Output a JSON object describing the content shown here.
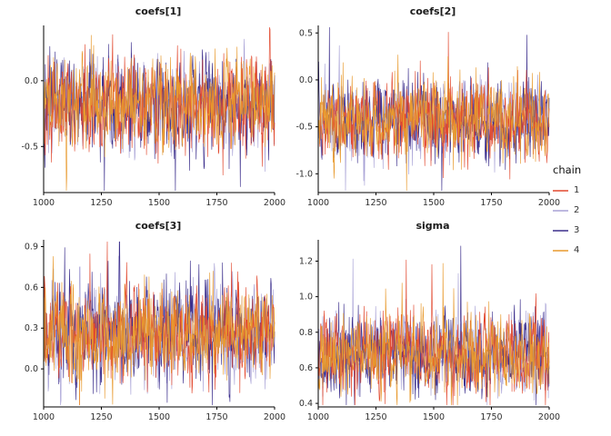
{
  "figure": {
    "background": "#ffffff"
  },
  "legend": {
    "title": "chain",
    "entries": [
      {
        "label": "1",
        "color": "#E2492F"
      },
      {
        "label": "2",
        "color": "#A8A2D6"
      },
      {
        "label": "3",
        "color": "#3B2E8C"
      },
      {
        "label": "4",
        "color": "#E89A2E"
      }
    ]
  },
  "chart_data": [
    {
      "type": "line",
      "title": "coefs[1]",
      "xlabel": "",
      "ylabel": "",
      "x": {
        "range": [
          1000,
          2000
        ],
        "tick_values": [
          1000,
          1250,
          1500,
          1750,
          2000
        ],
        "ticks": [
          "1000",
          "1250",
          "1500",
          "1750",
          "2000"
        ]
      },
      "y": {
        "lim": [
          -0.85,
          0.42
        ],
        "tick_values": [
          0.0,
          -0.5
        ],
        "ticks": [
          "0.0",
          "-0.5"
        ]
      },
      "series_summary": {
        "chains": [
          "1",
          "2",
          "3",
          "4"
        ],
        "iterations": [
          1000,
          2000
        ],
        "mean": -0.18,
        "sd": 0.17
      }
    },
    {
      "type": "line",
      "title": "coefs[2]",
      "xlabel": "",
      "ylabel": "",
      "x": {
        "range": [
          1000,
          2000
        ],
        "tick_values": [
          1000,
          1250,
          1500,
          1750,
          2000
        ],
        "ticks": [
          "1000",
          "1250",
          "1500",
          "1750",
          "2000"
        ]
      },
      "y": {
        "lim": [
          -1.2,
          0.58
        ],
        "tick_values": [
          0.5,
          0.0,
          -0.5,
          -1.0
        ],
        "ticks": [
          "0.5",
          "0.0",
          "-0.5",
          "-1.0"
        ]
      },
      "series_summary": {
        "chains": [
          "1",
          "2",
          "3",
          "4"
        ],
        "iterations": [
          1000,
          2000
        ],
        "mean": -0.42,
        "sd": 0.2
      }
    },
    {
      "type": "line",
      "title": "coefs[3]",
      "xlabel": "",
      "ylabel": "",
      "x": {
        "range": [
          1000,
          2000
        ],
        "tick_values": [
          1000,
          1250,
          1500,
          1750,
          2000
        ],
        "ticks": [
          "1000",
          "1250",
          "1500",
          "1750",
          "2000"
        ]
      },
      "y": {
        "lim": [
          -0.28,
          0.95
        ],
        "tick_values": [
          0.9,
          0.6,
          0.3,
          0.0
        ],
        "ticks": [
          "0.9",
          "0.6",
          "0.3",
          "0.0"
        ]
      },
      "series_summary": {
        "chains": [
          "1",
          "2",
          "3",
          "4"
        ],
        "iterations": [
          1000,
          2000
        ],
        "mean": 0.27,
        "sd": 0.17
      }
    },
    {
      "type": "line",
      "title": "sigma",
      "xlabel": "",
      "ylabel": "",
      "x": {
        "range": [
          1000,
          2000
        ],
        "tick_values": [
          1000,
          1250,
          1500,
          1750,
          2000
        ],
        "ticks": [
          "1000",
          "1250",
          "1500",
          "1750",
          "2000"
        ]
      },
      "y": {
        "lim": [
          0.38,
          1.32
        ],
        "tick_values": [
          1.2,
          1.0,
          0.8,
          0.6,
          0.4
        ],
        "ticks": [
          "1.2",
          "1.0",
          "0.8",
          "0.6",
          "0.4"
        ]
      },
      "series_summary": {
        "chains": [
          "1",
          "2",
          "3",
          "4"
        ],
        "iterations": [
          1000,
          2000
        ],
        "mean": 0.68,
        "sd": 0.11
      }
    }
  ]
}
